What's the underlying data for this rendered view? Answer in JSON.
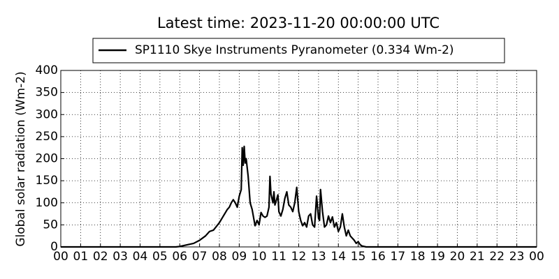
{
  "chart_data": {
    "type": "line",
    "title": "Latest time: 2023-11-20 00:00:00 UTC",
    "y_label": "Global solar radiation (Wm-2)",
    "x": [
      0,
      5.8,
      6.0,
      6.3,
      6.7,
      7.0,
      7.3,
      7.5,
      7.7,
      8.0,
      8.2,
      8.4,
      8.5,
      8.6,
      8.7,
      8.8,
      8.9,
      9.0,
      9.1,
      9.15,
      9.2,
      9.25,
      9.3,
      9.35,
      9.45,
      9.55,
      9.65,
      9.75,
      9.8,
      9.9,
      10.0,
      10.1,
      10.2,
      10.3,
      10.4,
      10.5,
      10.55,
      10.6,
      10.7,
      10.75,
      10.8,
      10.9,
      10.95,
      11.0,
      11.1,
      11.2,
      11.3,
      11.4,
      11.5,
      11.6,
      11.7,
      11.8,
      11.9,
      12.0,
      12.1,
      12.2,
      12.3,
      12.4,
      12.5,
      12.6,
      12.7,
      12.8,
      12.9,
      13.0,
      13.05,
      13.1,
      13.2,
      13.3,
      13.4,
      13.5,
      13.6,
      13.7,
      13.8,
      13.9,
      14.0,
      14.1,
      14.2,
      14.3,
      14.4,
      14.5,
      14.6,
      14.7,
      14.8,
      14.9,
      15.0,
      15.1,
      15.2,
      15.4,
      24
    ],
    "series": [
      {
        "name": "SP1110 Skye Instruments Pyranometer (0.334 Wm-2)",
        "color": "#000000",
        "values": [
          0,
          0,
          1,
          4,
          8,
          15,
          25,
          35,
          38,
          55,
          70,
          85,
          90,
          100,
          107,
          100,
          90,
          115,
          130,
          225,
          185,
          228,
          190,
          200,
          160,
          100,
          85,
          60,
          48,
          60,
          50,
          78,
          70,
          67,
          70,
          90,
          160,
          120,
          100,
          125,
          95,
          110,
          118,
          80,
          70,
          85,
          110,
          125,
          95,
          90,
          80,
          100,
          135,
          80,
          60,
          48,
          55,
          45,
          70,
          75,
          50,
          45,
          115,
          65,
          60,
          130,
          80,
          45,
          50,
          70,
          55,
          68,
          45,
          55,
          35,
          45,
          75,
          45,
          25,
          38,
          25,
          20,
          15,
          8,
          12,
          5,
          2,
          0,
          0
        ]
      }
    ],
    "xlim": [
      0,
      24
    ],
    "xticks": [
      {
        "value": 0,
        "label": "00"
      },
      {
        "value": 1,
        "label": "01"
      },
      {
        "value": 2,
        "label": "02"
      },
      {
        "value": 3,
        "label": "03"
      },
      {
        "value": 4,
        "label": "04"
      },
      {
        "value": 5,
        "label": "05"
      },
      {
        "value": 6,
        "label": "06"
      },
      {
        "value": 7,
        "label": "07"
      },
      {
        "value": 8,
        "label": "08"
      },
      {
        "value": 9,
        "label": "09"
      },
      10,
      11,
      12,
      13,
      14,
      15,
      16,
      17,
      18,
      19,
      20,
      21,
      22,
      23,
      {
        "value": 24,
        "label": "00"
      }
    ],
    "ylim": [
      0,
      400
    ],
    "yticks": [
      0,
      50,
      100,
      150,
      200,
      250,
      300,
      350,
      400
    ],
    "grid": true
  }
}
